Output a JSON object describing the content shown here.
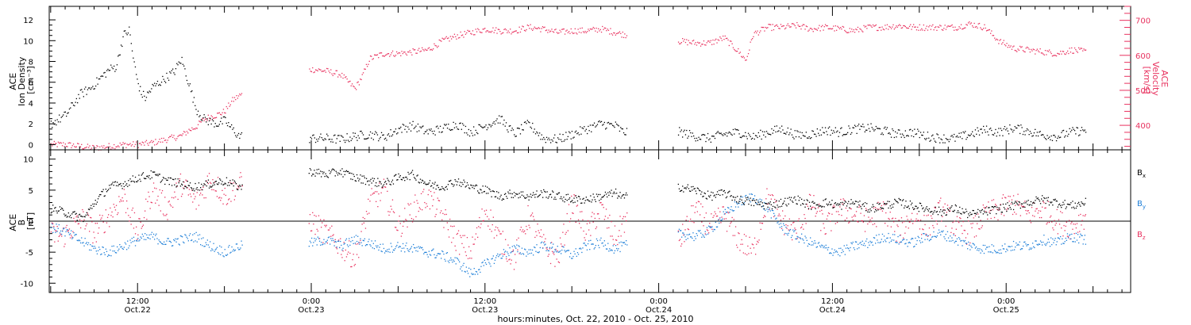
{
  "colors": {
    "density": "#000000",
    "velocity": "#e8325f",
    "bx": "#000000",
    "by": "#1e7fd8",
    "bz": "#e8325f",
    "axis": "#000000"
  },
  "xaxis": {
    "label": "hours:minutes, Oct. 22, 2010 - Oct. 25, 2010",
    "ticks": [
      {
        "t": 12,
        "time": "12:00",
        "date": "Oct.22"
      },
      {
        "t": 24,
        "time": "0:00",
        "date": "Oct.23"
      },
      {
        "t": 36,
        "time": "12:00",
        "date": "Oct.23"
      },
      {
        "t": 48,
        "time": "0:00",
        "date": "Oct.24"
      },
      {
        "t": 60,
        "time": "12:00",
        "date": "Oct.24"
      },
      {
        "t": 72,
        "time": "0:00",
        "date": "Oct.25"
      }
    ]
  },
  "panels": {
    "top": {
      "left_label": [
        "ACE",
        "Ion Density",
        "[cm⁻³]"
      ],
      "right_label": [
        "ACE",
        "Velocity",
        "[km/s]"
      ],
      "left_ticks": [
        "0",
        "2",
        "4",
        "6",
        "8",
        "10",
        "12"
      ],
      "right_ticks": [
        "400",
        "500",
        "600",
        "700"
      ]
    },
    "bottom": {
      "left_label": [
        "ACE",
        "B",
        "[nT]"
      ],
      "left_ticks": [
        "-10",
        "-5",
        "0",
        "5",
        "10"
      ],
      "legend": [
        {
          "key": "bx",
          "base": "B",
          "sub": "x"
        },
        {
          "key": "by",
          "base": "B",
          "sub": "y"
        },
        {
          "key": "bz",
          "base": "B",
          "sub": "z"
        }
      ]
    }
  },
  "chart_data": [
    {
      "type": "scatter",
      "title": "",
      "xlabel": "hours:minutes, Oct. 22, 2010 - Oct. 25, 2010",
      "x_unit": "hours since Oct. 22, 2010 00:00",
      "xlim": [
        5.9,
        80.6
      ],
      "ylabel": "ACE Ion Density [cm⁻³]",
      "ylim": [
        -0.5,
        13.3
      ],
      "y2label": "ACE Velocity [km/s]",
      "y2lim": [
        330,
        740
      ],
      "data_gaps_hours": [
        [
          19.2,
          23.8
        ],
        [
          45.8,
          49.3
        ]
      ],
      "series": [
        {
          "name": "Ion Density",
          "axis": "left",
          "x": [
            6.0,
            7.0,
            8.0,
            8.8,
            9.5,
            10.0,
            10.5,
            11.0,
            11.4,
            11.6,
            11.9,
            12.2,
            12.5,
            13.0,
            13.5,
            14.0,
            14.5,
            15.0,
            15.5,
            16.0,
            16.5,
            17.0,
            17.5,
            18.0,
            18.5,
            19.0,
            24.0,
            25.0,
            26.0,
            27.0,
            28.0,
            29.0,
            30.0,
            31.0,
            32.0,
            33.0,
            34.0,
            35.0,
            36.0,
            37.0,
            38.0,
            39.0,
            40.0,
            41.0,
            42.0,
            43.0,
            44.0,
            45.0,
            45.5,
            49.5,
            50.5,
            51.5,
            52.5,
            53.5,
            54.5,
            55.5,
            56.5,
            57.5,
            58.5,
            59.5,
            60.5,
            61.5,
            62.5,
            63.5,
            64.5,
            65.5,
            66.5,
            67.5,
            68.5,
            69.5,
            70.5,
            71.5,
            72.5,
            73.5,
            74.5,
            75.5,
            76.5,
            77.5
          ],
          "y": [
            2.0,
            2.8,
            4.8,
            5.5,
            6.5,
            7.2,
            7.5,
            10.5,
            11.0,
            9.0,
            6.5,
            5.0,
            4.5,
            5.5,
            6.0,
            6.5,
            7.0,
            8.2,
            6.0,
            3.5,
            2.5,
            2.2,
            2.0,
            2.3,
            1.5,
            0.8,
            0.6,
            0.6,
            0.5,
            0.8,
            1.0,
            0.7,
            1.5,
            1.8,
            1.2,
            1.5,
            2.0,
            1.2,
            1.8,
            2.5,
            1.0,
            2.0,
            0.6,
            0.5,
            1.0,
            1.5,
            2.0,
            1.8,
            1.2,
            1.2,
            0.8,
            0.6,
            1.0,
            1.2,
            0.7,
            1.2,
            1.5,
            0.9,
            1.0,
            1.4,
            1.2,
            1.5,
            1.6,
            1.3,
            1.0,
            1.2,
            0.8,
            0.6,
            0.6,
            1.0,
            1.4,
            1.2,
            1.6,
            1.3,
            0.9,
            0.8,
            1.2,
            1.4
          ]
        },
        {
          "name": "Velocity",
          "axis": "right",
          "x": [
            6.0,
            7.0,
            8.0,
            9.0,
            10.0,
            11.0,
            12.0,
            13.0,
            14.0,
            15.0,
            15.5,
            16.0,
            16.5,
            17.0,
            17.5,
            18.0,
            18.5,
            19.0,
            24.0,
            25.0,
            26.0,
            27.0,
            27.5,
            28.0,
            29.0,
            30.0,
            31.0,
            32.0,
            33.0,
            34.0,
            35.0,
            36.0,
            37.0,
            38.0,
            39.0,
            40.0,
            41.0,
            42.0,
            43.0,
            44.0,
            45.0,
            45.5,
            49.5,
            50.5,
            51.5,
            52.5,
            53.5,
            54.0,
            54.5,
            55.5,
            56.5,
            57.5,
            58.5,
            59.5,
            60.5,
            61.5,
            62.5,
            63.5,
            64.5,
            65.5,
            66.5,
            67.5,
            68.5,
            69.5,
            70.5,
            71.5,
            72.5,
            73.5,
            74.5,
            75.5,
            76.5,
            77.5
          ],
          "y": [
            345,
            345,
            340,
            335,
            340,
            345,
            345,
            350,
            360,
            370,
            385,
            395,
            415,
            425,
            430,
            440,
            470,
            485,
            560,
            555,
            545,
            505,
            540,
            590,
            605,
            605,
            610,
            615,
            640,
            655,
            665,
            675,
            670,
            670,
            680,
            675,
            665,
            670,
            670,
            675,
            665,
            660,
            640,
            635,
            635,
            650,
            610,
            585,
            660,
            680,
            680,
            685,
            675,
            680,
            675,
            670,
            680,
            680,
            685,
            680,
            680,
            680,
            680,
            690,
            680,
            640,
            620,
            615,
            610,
            605,
            615,
            610
          ]
        }
      ]
    },
    {
      "type": "scatter",
      "title": "",
      "xlabel": "hours:minutes, Oct. 22, 2010 - Oct. 25, 2010",
      "x_unit": "hours since Oct. 22, 2010 00:00",
      "xlim": [
        5.9,
        80.6
      ],
      "ylabel": "ACE B [nT]",
      "ylim": [
        -11.5,
        11.5
      ],
      "zero_line": true,
      "data_gaps_hours": [
        [
          19.2,
          23.8
        ],
        [
          45.8,
          49.3
        ]
      ],
      "series": [
        {
          "name": "Bx",
          "x": [
            6.0,
            6.8,
            7.5,
            8.3,
            9.0,
            10.0,
            11.0,
            12.0,
            13.0,
            14.0,
            15.0,
            16.0,
            17.0,
            18.0,
            19.0,
            24.0,
            25.0,
            26.0,
            27.0,
            28.0,
            29.0,
            30.0,
            31.0,
            32.0,
            33.0,
            34.0,
            35.0,
            36.0,
            37.0,
            38.0,
            39.0,
            40.0,
            41.0,
            42.0,
            43.0,
            44.0,
            45.0,
            45.5,
            49.5,
            50.5,
            51.5,
            52.5,
            53.5,
            54.5,
            55.5,
            56.5,
            57.5,
            58.5,
            59.5,
            60.5,
            61.5,
            62.5,
            63.5,
            64.5,
            65.5,
            66.5,
            67.5,
            68.5,
            69.5,
            70.5,
            71.5,
            72.5,
            73.5,
            74.5,
            75.5,
            76.5,
            77.5
          ],
          "y": [
            2.0,
            1.5,
            1.0,
            0.5,
            3.0,
            5.5,
            6.0,
            7.0,
            7.5,
            6.5,
            6.0,
            5.5,
            6.0,
            6.5,
            5.5,
            8.0,
            7.5,
            8.0,
            7.0,
            6.5,
            6.0,
            7.0,
            7.5,
            6.0,
            5.5,
            6.5,
            5.5,
            5.0,
            4.0,
            4.5,
            4.0,
            4.5,
            4.0,
            3.5,
            3.5,
            4.0,
            4.5,
            3.8,
            5.5,
            5.0,
            4.0,
            4.5,
            3.5,
            3.0,
            2.5,
            3.0,
            3.5,
            2.5,
            3.0,
            2.5,
            3.0,
            2.0,
            2.5,
            3.0,
            2.5,
            2.0,
            1.5,
            2.0,
            1.0,
            1.5,
            2.0,
            2.5,
            3.0,
            3.5,
            3.0,
            2.5,
            3.0
          ]
        },
        {
          "name": "By",
          "x": [
            6.0,
            6.8,
            7.5,
            8.3,
            9.0,
            10.0,
            11.0,
            12.0,
            13.0,
            14.0,
            15.0,
            16.0,
            17.0,
            18.0,
            19.0,
            24.0,
            25.0,
            26.0,
            27.0,
            28.0,
            29.0,
            30.0,
            31.0,
            32.0,
            33.0,
            34.0,
            35.0,
            36.0,
            37.0,
            38.0,
            39.0,
            40.0,
            41.0,
            42.0,
            43.0,
            44.0,
            45.0,
            45.5,
            49.5,
            50.5,
            51.5,
            52.5,
            53.5,
            54.5,
            55.5,
            56.5,
            57.5,
            58.5,
            59.5,
            60.5,
            61.5,
            62.5,
            63.5,
            64.5,
            65.5,
            66.5,
            67.5,
            68.5,
            69.5,
            70.5,
            71.5,
            72.5,
            73.5,
            74.5,
            75.5,
            76.5,
            77.5
          ],
          "y": [
            -1.0,
            -1.5,
            -2.5,
            -3.5,
            -4.5,
            -5.0,
            -4.0,
            -3.0,
            -2.5,
            -3.5,
            -3.0,
            -2.5,
            -4.0,
            -5.0,
            -4.0,
            -3.5,
            -3.0,
            -4.0,
            -3.0,
            -3.5,
            -4.5,
            -4.0,
            -4.5,
            -5.0,
            -5.5,
            -6.5,
            -8.5,
            -7.0,
            -5.5,
            -4.5,
            -5.0,
            -4.0,
            -4.5,
            -5.5,
            -4.0,
            -3.5,
            -4.5,
            -4.0,
            -2.0,
            -2.5,
            -1.5,
            1.0,
            3.0,
            4.0,
            2.0,
            -1.0,
            -2.5,
            -3.5,
            -4.5,
            -5.0,
            -4.0,
            -3.5,
            -2.5,
            -3.0,
            -3.5,
            -2.5,
            -2.0,
            -3.0,
            -4.0,
            -4.5,
            -4.5,
            -4.0,
            -4.0,
            -3.0,
            -3.5,
            -2.5,
            -3.0
          ]
        },
        {
          "name": "Bz",
          "x": [
            6.0,
            6.8,
            7.5,
            8.3,
            9.0,
            10.0,
            11.0,
            12.0,
            13.0,
            14.0,
            15.0,
            16.0,
            17.0,
            18.0,
            19.0,
            24.0,
            25.0,
            26.0,
            27.0,
            28.0,
            29.0,
            30.0,
            31.0,
            32.0,
            33.0,
            34.0,
            35.0,
            36.0,
            37.0,
            38.0,
            39.0,
            40.0,
            41.0,
            42.0,
            43.0,
            44.0,
            45.0,
            45.5,
            49.5,
            50.5,
            51.5,
            52.5,
            53.5,
            54.5,
            55.5,
            56.5,
            57.5,
            58.5,
            59.5,
            60.5,
            61.5,
            62.5,
            63.5,
            64.5,
            65.5,
            66.5,
            67.5,
            68.5,
            69.5,
            70.5,
            71.5,
            72.5,
            73.5,
            74.5,
            75.5,
            76.5,
            77.5
          ],
          "y": [
            -2.0,
            -2.5,
            -1.0,
            0.5,
            -2.0,
            1.0,
            4.0,
            -2.0,
            5.0,
            2.0,
            6.0,
            3.0,
            7.0,
            4.0,
            6.0,
            0.0,
            -2.0,
            -4.0,
            -6.0,
            3.0,
            5.0,
            -1.0,
            2.0,
            4.0,
            1.0,
            -3.0,
            -5.0,
            2.0,
            -3.0,
            -6.0,
            1.0,
            -4.0,
            -6.0,
            3.0,
            -2.0,
            2.0,
            -3.0,
            0.0,
            -3.0,
            2.0,
            -1.0,
            1.0,
            -3.0,
            -5.0,
            4.0,
            0.0,
            -2.0,
            3.0,
            -1.0,
            2.0,
            1.0,
            0.0,
            2.0,
            -2.0,
            1.0,
            -1.0,
            2.0,
            -1.0,
            -2.0,
            1.0,
            2.0,
            3.0,
            1.0,
            2.0,
            0.0,
            -1.0,
            1.0
          ]
        }
      ]
    }
  ]
}
